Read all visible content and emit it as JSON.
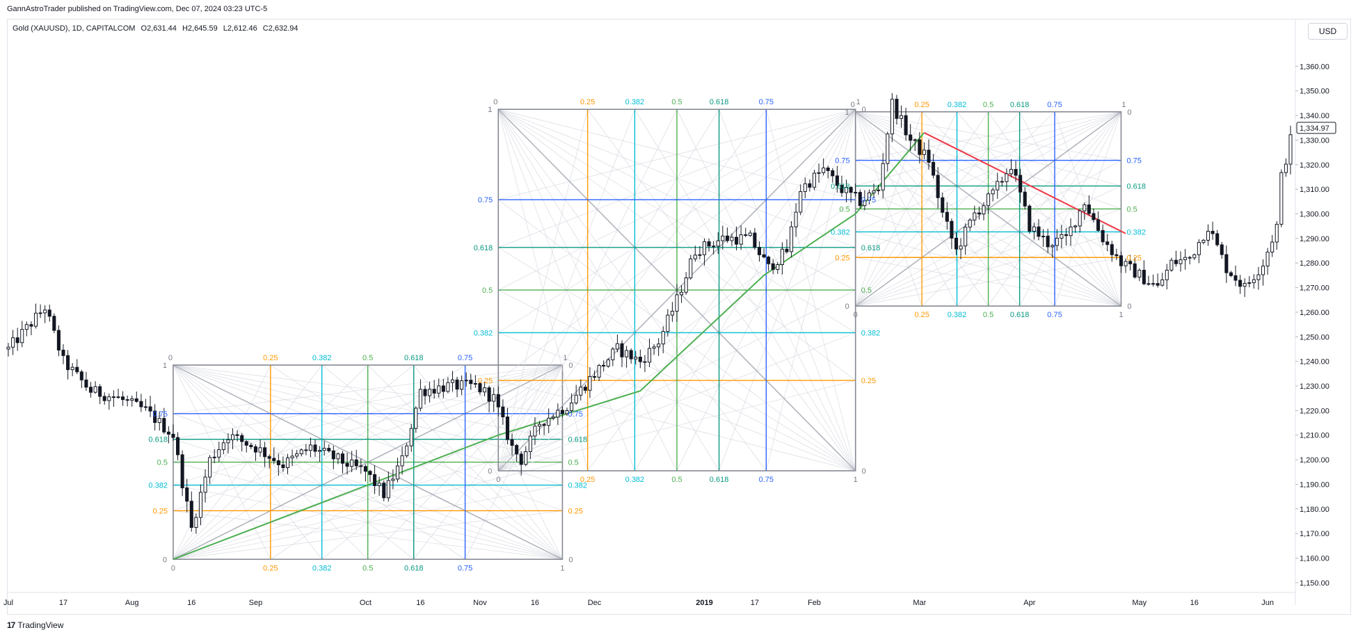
{
  "header": {
    "publish_line": "GannAstroTrader published on TradingView.com, Dec 07, 2024 03:23 UTC-5",
    "symbol": "Gold (XAUUSD), 1D, CAPITALCOM",
    "open": "O2,631.44",
    "high": "H2,645.59",
    "low": "L2,612.46",
    "close": "C2,632.94",
    "currency": "USD"
  },
  "footer": {
    "brand": "TradingView",
    "logo": "17"
  },
  "colors": {
    "orange": "#ff9800",
    "cyan": "#00bcd4",
    "green": "#4caf50",
    "teal": "#089981",
    "blue": "#2962ff",
    "grey": "#b2b5be",
    "trend_up": "#4caf50",
    "trend_down": "#f23645"
  },
  "chart_data": {
    "type": "candlestick",
    "y_axis": {
      "ticks": [
        "1,360.00",
        "1,350.00",
        "1,340.00",
        "1,330.00",
        "1,320.00",
        "1,310.00",
        "1,300.00",
        "1,290.00",
        "1,280.00",
        "1,270.00",
        "1,260.00",
        "1,250.00",
        "1,240.00",
        "1,230.00",
        "1,220.00",
        "1,210.00",
        "1,200.00",
        "1,190.00",
        "1,180.00",
        "1,170.00",
        "1,160.00",
        "1,150.00"
      ],
      "tick_values": [
        1360,
        1350,
        1340,
        1330,
        1320,
        1310,
        1300,
        1290,
        1280,
        1270,
        1260,
        1250,
        1240,
        1230,
        1220,
        1210,
        1200,
        1190,
        1180,
        1170,
        1160,
        1150
      ],
      "range": [
        1146,
        1370
      ],
      "last_price_label": "1,334.97",
      "last_price": 1334.97
    },
    "x_axis": {
      "labels": [
        "Jul",
        "17",
        "Aug",
        "16",
        "Sep",
        "Oct",
        "16",
        "Nov",
        "16",
        "Dec",
        "2019",
        "17",
        "Feb",
        "Mar",
        "Apr",
        "May",
        "16",
        "Jun"
      ],
      "label_bars": [
        0,
        12,
        27,
        40,
        54,
        78,
        90,
        103,
        115,
        128,
        152,
        163,
        176,
        199,
        223,
        247,
        259,
        275
      ]
    },
    "bar_count": 281,
    "price_path": [
      [
        0,
        1245
      ],
      [
        8,
        1262
      ],
      [
        12,
        1240
      ],
      [
        18,
        1228
      ],
      [
        24,
        1225
      ],
      [
        30,
        1220
      ],
      [
        36,
        1210
      ],
      [
        40,
        1172
      ],
      [
        44,
        1200
      ],
      [
        48,
        1210
      ],
      [
        54,
        1205
      ],
      [
        60,
        1198
      ],
      [
        66,
        1205
      ],
      [
        72,
        1200
      ],
      [
        78,
        1195
      ],
      [
        82,
        1186
      ],
      [
        86,
        1200
      ],
      [
        90,
        1228
      ],
      [
        96,
        1230
      ],
      [
        102,
        1230
      ],
      [
        106,
        1225
      ],
      [
        110,
        1205
      ],
      [
        112,
        1200
      ],
      [
        116,
        1215
      ],
      [
        122,
        1222
      ],
      [
        128,
        1235
      ],
      [
        133,
        1245
      ],
      [
        138,
        1240
      ],
      [
        142,
        1248
      ],
      [
        146,
        1265
      ],
      [
        150,
        1285
      ],
      [
        156,
        1290
      ],
      [
        162,
        1290
      ],
      [
        166,
        1278
      ],
      [
        170,
        1285
      ],
      [
        173,
        1310
      ],
      [
        178,
        1318
      ],
      [
        182,
        1310
      ],
      [
        186,
        1305
      ],
      [
        190,
        1310
      ],
      [
        193,
        1345
      ],
      [
        197,
        1330
      ],
      [
        201,
        1322
      ],
      [
        204,
        1300
      ],
      [
        207,
        1285
      ],
      [
        211,
        1300
      ],
      [
        215,
        1308
      ],
      [
        219,
        1320
      ],
      [
        223,
        1295
      ],
      [
        227,
        1288
      ],
      [
        231,
        1290
      ],
      [
        235,
        1305
      ],
      [
        239,
        1290
      ],
      [
        243,
        1280
      ],
      [
        247,
        1275
      ],
      [
        251,
        1270
      ],
      [
        254,
        1280
      ],
      [
        258,
        1282
      ],
      [
        262,
        1295
      ],
      [
        266,
        1278
      ],
      [
        270,
        1270
      ],
      [
        274,
        1280
      ],
      [
        277,
        1295
      ],
      [
        278,
        1315
      ],
      [
        280,
        1330
      ]
    ],
    "gann_boxes": [
      {
        "name": "box-1",
        "bar_start": 36,
        "bar_end": 121,
        "price_low": 1159.5,
        "price_high": 1238.5,
        "levels": [
          "0.25",
          "0.382",
          "0.5",
          "0.618",
          "0.75"
        ],
        "level_values": [
          0.25,
          0.382,
          0.5,
          0.618,
          0.75
        ],
        "corner_labels": [
          "0",
          "1",
          "0",
          "1"
        ]
      },
      {
        "name": "box-2",
        "bar_start": 107,
        "bar_end": 185,
        "price_low": 1195.5,
        "price_high": 1342.5,
        "levels": [
          "0.25",
          "0.382",
          "0.5",
          "0.618",
          "0.75"
        ],
        "level_values": [
          0.25,
          0.382,
          0.5,
          0.618,
          0.75
        ],
        "corner_labels": [
          "0",
          "1",
          "0",
          "1"
        ]
      },
      {
        "name": "box-3",
        "bar_start": 185,
        "bar_end": 243,
        "price_low": 1262.5,
        "price_high": 1341.5,
        "levels": [
          "0.25",
          "0.382",
          "0.5",
          "0.618",
          "0.75"
        ],
        "level_values": [
          0.25,
          0.382,
          0.5,
          0.618,
          0.75
        ],
        "corner_labels": [
          "0",
          "1",
          "0",
          "1"
        ]
      }
    ],
    "trend_lines": [
      {
        "name": "uptrend-line",
        "color": "green",
        "points": [
          [
            36,
            1159.5
          ],
          [
            107,
            1210
          ],
          [
            138,
            1228
          ],
          [
            165,
            1275
          ],
          [
            185,
            1300
          ],
          [
            200,
            1333
          ]
        ]
      },
      {
        "name": "downtrend-line",
        "color": "red",
        "points": [
          [
            200,
            1333
          ],
          [
            244,
            1292
          ]
        ]
      }
    ]
  }
}
